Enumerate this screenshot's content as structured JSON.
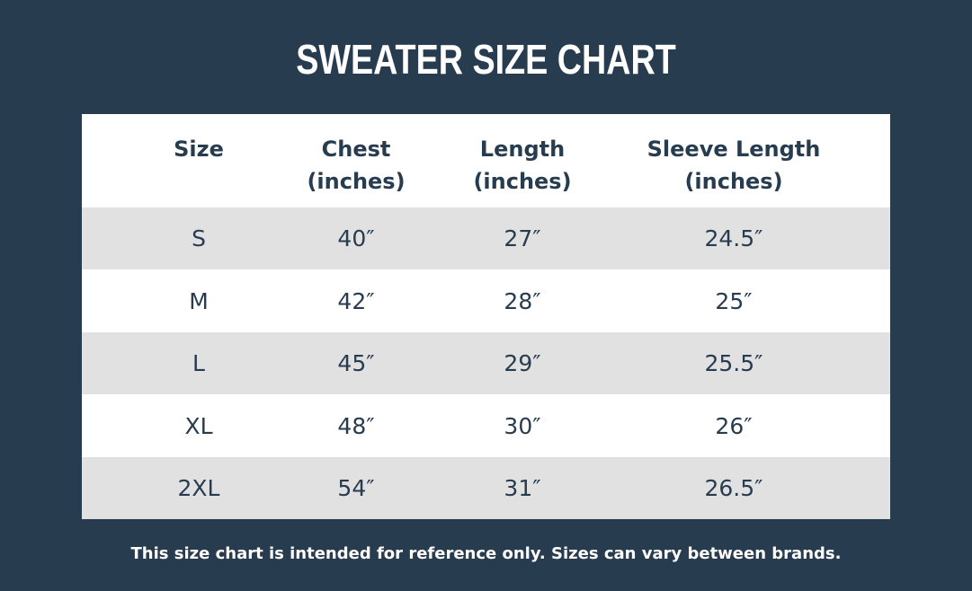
{
  "chart_data": {
    "type": "table",
    "title": "SWEATER SIZE CHART",
    "columns": [
      {
        "line1": "Size",
        "line2": ""
      },
      {
        "line1": "Chest",
        "line2": "(inches)"
      },
      {
        "line1": "Length",
        "line2": "(inches)"
      },
      {
        "line1": "Sleeve Length",
        "line2": "(inches)"
      }
    ],
    "rows": [
      [
        "S",
        "40″",
        "27″",
        "24.5″"
      ],
      [
        "M",
        "42″",
        "28″",
        "25″"
      ],
      [
        "L",
        "45″",
        "29″",
        "25.5″"
      ],
      [
        "XL",
        "48″",
        "30″",
        "26″"
      ],
      [
        "2XL",
        "54″",
        "31″",
        "26.5″"
      ]
    ],
    "footnote": "This size chart is intended for reference only. Sizes can vary between brands."
  },
  "colors": {
    "background": "#283c50",
    "table_text": "#283c50",
    "row_shaded": "#e1e1e1",
    "row_plain": "#ffffff",
    "title_text": "#ffffff"
  }
}
